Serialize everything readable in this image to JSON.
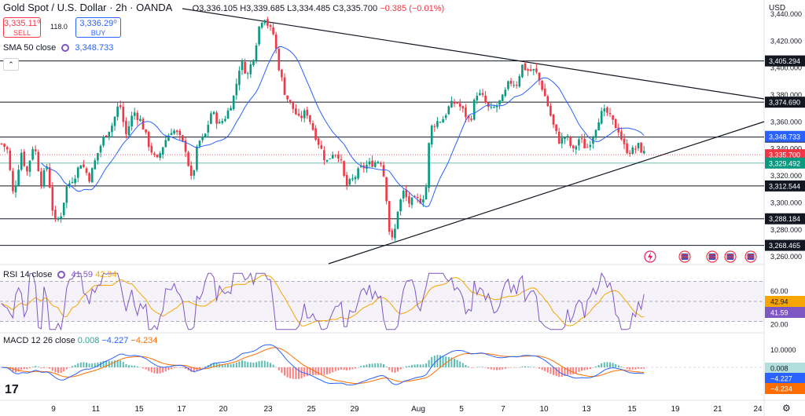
{
  "header": {
    "title": "Gold Spot / U.S. Dollar · 2h · OANDA",
    "ohlc": "O3,336.105 H3,339.685 L3,334.485 C3,335.700",
    "change": "−0.385 (−0.01%)"
  },
  "trade": {
    "sell_price": "3,335.11⁰",
    "sell_label": "SELL",
    "spread": "118.0",
    "buy_price": "3,336.29⁰",
    "buy_label": "BUY"
  },
  "sma": {
    "label": "SMA 50 close",
    "value": "3,348.733"
  },
  "rsi": {
    "label": "RSI 14 close",
    "value1": "41.59",
    "value2": "42.94"
  },
  "macd": {
    "label": "MACD 12 26 close",
    "value1": "0.008",
    "value2": "−4.227",
    "value3": "−4.234"
  },
  "currency": "USD",
  "colors": {
    "up": "#089981",
    "down": "#f23645",
    "sma": "#2962ff",
    "rsi": "#7e57c2",
    "rsi_ma": "#f7a600",
    "macd": "#2962ff",
    "signal": "#ff6d00"
  },
  "chart_data": {
    "type": "candlestick",
    "symbol": "XAUUSD",
    "timeframe": "2h",
    "x_ticks": [
      "9",
      "11",
      "15",
      "17",
      "20",
      "23",
      "25",
      "29",
      "Aug",
      "5",
      "7",
      "10",
      "13",
      "15",
      "19",
      "21",
      "24"
    ],
    "y_ticks": [
      "3,440.000",
      "3,420.000",
      "3,400.000",
      "3,380.000",
      "3,360.000",
      "3,340.000",
      "3,320.000",
      "3,300.000",
      "3,280.000",
      "3,260.000"
    ],
    "ylim": [
      3256,
      3447
    ],
    "horizontal_levels": [
      "3,405.294",
      "3,374.690",
      "3,348.796",
      "3,312.544",
      "3,288.184",
      "3,268.465"
    ],
    "price_labels": [
      "3,348.733",
      "3,335.700",
      "3,329.492"
    ],
    "path": [
      [
        0,
        3345
      ],
      [
        9,
        3340
      ],
      [
        17,
        3305
      ],
      [
        27,
        3338
      ],
      [
        34,
        3322
      ],
      [
        43,
        3345
      ],
      [
        52,
        3315
      ],
      [
        60,
        3328
      ],
      [
        69,
        3285
      ],
      [
        77,
        3290
      ],
      [
        85,
        3312
      ],
      [
        95,
        3320
      ],
      [
        103,
        3330
      ],
      [
        114,
        3318
      ],
      [
        123,
        3335
      ],
      [
        133,
        3350
      ],
      [
        143,
        3358
      ],
      [
        152,
        3375
      ],
      [
        160,
        3350
      ],
      [
        170,
        3368
      ],
      [
        180,
        3360
      ],
      [
        188,
        3345
      ],
      [
        199,
        3330
      ],
      [
        209,
        3345
      ],
      [
        219,
        3355
      ],
      [
        227,
        3350
      ],
      [
        236,
        3340
      ],
      [
        244,
        3315
      ],
      [
        252,
        3345
      ],
      [
        260,
        3348
      ],
      [
        269,
        3368
      ],
      [
        279,
        3358
      ],
      [
        288,
        3365
      ],
      [
        298,
        3380
      ],
      [
        306,
        3405
      ],
      [
        315,
        3395
      ],
      [
        323,
        3410
      ],
      [
        331,
        3435
      ],
      [
        337,
        3438
      ],
      [
        342,
        3430
      ],
      [
        348,
        3425
      ],
      [
        355,
        3400
      ],
      [
        363,
        3380
      ],
      [
        371,
        3372
      ],
      [
        380,
        3362
      ],
      [
        390,
        3368
      ],
      [
        398,
        3355
      ],
      [
        407,
        3342
      ],
      [
        415,
        3330
      ],
      [
        424,
        3338
      ],
      [
        432,
        3335
      ],
      [
        440,
        3312
      ],
      [
        450,
        3318
      ],
      [
        458,
        3325
      ],
      [
        467,
        3328
      ],
      [
        476,
        3330
      ],
      [
        484,
        3332
      ],
      [
        490,
        3315
      ],
      [
        495,
        3280
      ],
      [
        500,
        3270
      ],
      [
        506,
        3295
      ],
      [
        513,
        3308
      ],
      [
        520,
        3300
      ],
      [
        528,
        3302
      ],
      [
        537,
        3302
      ],
      [
        542,
        3312
      ],
      [
        547,
        3355
      ],
      [
        555,
        3360
      ],
      [
        563,
        3362
      ],
      [
        572,
        3372
      ],
      [
        581,
        3375
      ],
      [
        589,
        3368
      ],
      [
        598,
        3360
      ],
      [
        606,
        3382
      ],
      [
        614,
        3378
      ],
      [
        623,
        3368
      ],
      [
        632,
        3372
      ],
      [
        640,
        3378
      ],
      [
        648,
        3390
      ],
      [
        657,
        3388
      ],
      [
        664,
        3402
      ],
      [
        672,
        3398
      ],
      [
        681,
        3398
      ],
      [
        690,
        3385
      ],
      [
        698,
        3370
      ],
      [
        705,
        3355
      ],
      [
        712,
        3345
      ],
      [
        720,
        3350
      ],
      [
        729,
        3338
      ],
      [
        737,
        3348
      ],
      [
        746,
        3340
      ],
      [
        754,
        3350
      ],
      [
        763,
        3365
      ],
      [
        771,
        3368
      ],
      [
        779,
        3360
      ],
      [
        787,
        3354
      ],
      [
        795,
        3340
      ],
      [
        803,
        3338
      ],
      [
        812,
        3342
      ],
      [
        820,
        3336
      ]
    ]
  }
}
